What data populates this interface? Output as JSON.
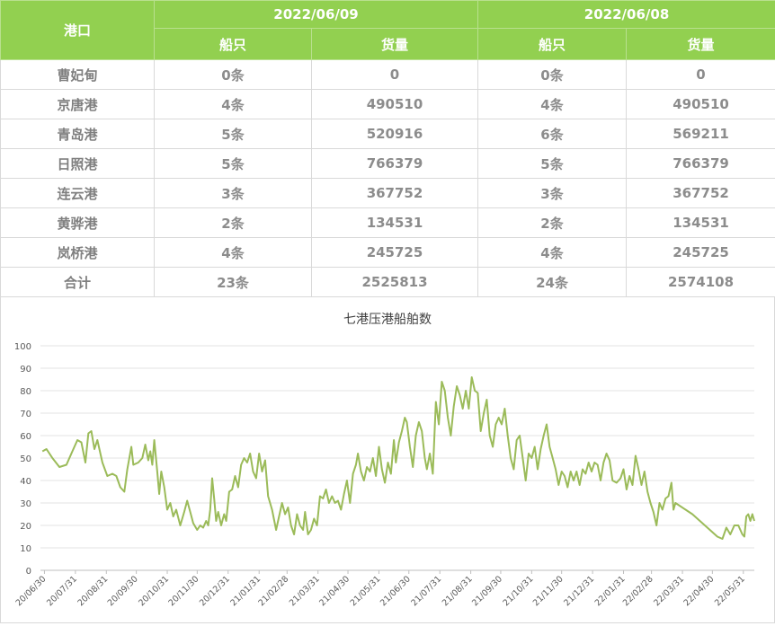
{
  "table": {
    "header_port": "港口",
    "dates": [
      "2022/06/09",
      "2022/06/08"
    ],
    "sub_ships": "船只",
    "sub_cargo": "货量",
    "rows": [
      {
        "port": "曹妃甸",
        "ships1": "0条",
        "cargo1": "0",
        "ships2": "0条",
        "cargo2": "0"
      },
      {
        "port": "京唐港",
        "ships1": "4条",
        "cargo1": "490510",
        "ships2": "4条",
        "cargo2": "490510"
      },
      {
        "port": "青岛港",
        "ships1": "5条",
        "cargo1": "520916",
        "ships2": "6条",
        "cargo2": "569211"
      },
      {
        "port": "日照港",
        "ships1": "5条",
        "cargo1": "766379",
        "ships2": "5条",
        "cargo2": "766379"
      },
      {
        "port": "连云港",
        "ships1": "3条",
        "cargo1": "367752",
        "ships2": "3条",
        "cargo2": "367752"
      },
      {
        "port": "黄骅港",
        "ships1": "2条",
        "cargo1": "134531",
        "ships2": "2条",
        "cargo2": "134531"
      },
      {
        "port": "岚桥港",
        "ships1": "4条",
        "cargo1": "245725",
        "ships2": "4条",
        "cargo2": "245725"
      },
      {
        "port": "合计",
        "ships1": "23条",
        "cargo1": "2525813",
        "ships2": "24条",
        "cargo2": "2574108"
      }
    ]
  },
  "chart_data": {
    "type": "line",
    "title": "七港压港船舶数",
    "ylim": [
      0,
      100
    ],
    "yticks": [
      0,
      10,
      20,
      30,
      40,
      50,
      60,
      70,
      80,
      90,
      100
    ],
    "grid": true,
    "x_tick_labels": [
      "20/06/30",
      "20/07/31",
      "20/08/31",
      "20/09/30",
      "20/10/31",
      "20/11/30",
      "20/12/31",
      "21/01/31",
      "21/02/28",
      "21/03/31",
      "21/04/30",
      "21/05/31",
      "21/06/30",
      "21/07/31",
      "21/08/31",
      "21/09/30",
      "21/10/31",
      "21/11/30",
      "21/12/31",
      "22/01/31",
      "22/02/28",
      "22/03/31",
      "22/04/30",
      "22/05/31"
    ],
    "line_color": "#9bbb59",
    "series": [
      {
        "points": [
          [
            "2020-06-28",
            53
          ],
          [
            "2020-07-02",
            54
          ],
          [
            "2020-07-08",
            50
          ],
          [
            "2020-07-15",
            46
          ],
          [
            "2020-07-22",
            47
          ],
          [
            "2020-07-28",
            53
          ],
          [
            "2020-08-02",
            58
          ],
          [
            "2020-08-06",
            57
          ],
          [
            "2020-08-10",
            48
          ],
          [
            "2020-08-13",
            61
          ],
          [
            "2020-08-16",
            62
          ],
          [
            "2020-08-19",
            54
          ],
          [
            "2020-08-22",
            58
          ],
          [
            "2020-08-27",
            48
          ],
          [
            "2020-09-01",
            42
          ],
          [
            "2020-09-06",
            43
          ],
          [
            "2020-09-10",
            42
          ],
          [
            "2020-09-14",
            37
          ],
          [
            "2020-09-18",
            35
          ],
          [
            "2020-09-21",
            45
          ],
          [
            "2020-09-25",
            55
          ],
          [
            "2020-09-27",
            47
          ],
          [
            "2020-10-02",
            48
          ],
          [
            "2020-10-06",
            50
          ],
          [
            "2020-10-09",
            56
          ],
          [
            "2020-10-12",
            49
          ],
          [
            "2020-10-14",
            53
          ],
          [
            "2020-10-16",
            47
          ],
          [
            "2020-10-18",
            58
          ],
          [
            "2020-10-21",
            44
          ],
          [
            "2020-10-23",
            34
          ],
          [
            "2020-10-25",
            44
          ],
          [
            "2020-10-28",
            37
          ],
          [
            "2020-10-31",
            27
          ],
          [
            "2020-11-03",
            30
          ],
          [
            "2020-11-06",
            24
          ],
          [
            "2020-11-09",
            27
          ],
          [
            "2020-11-13",
            20
          ],
          [
            "2020-11-17",
            26
          ],
          [
            "2020-11-20",
            31
          ],
          [
            "2020-11-23",
            26
          ],
          [
            "2020-11-26",
            21
          ],
          [
            "2020-11-30",
            18
          ],
          [
            "2020-12-03",
            20
          ],
          [
            "2020-12-06",
            19
          ],
          [
            "2020-12-09",
            22
          ],
          [
            "2020-12-11",
            20
          ],
          [
            "2020-12-13",
            27
          ],
          [
            "2020-12-15",
            41
          ],
          [
            "2020-12-17",
            32
          ],
          [
            "2020-12-19",
            22
          ],
          [
            "2020-12-21",
            26
          ],
          [
            "2020-12-24",
            20
          ],
          [
            "2020-12-27",
            25
          ],
          [
            "2020-12-29",
            22
          ],
          [
            "2021-01-01",
            35
          ],
          [
            "2021-01-04",
            36
          ],
          [
            "2021-01-07",
            42
          ],
          [
            "2021-01-10",
            37
          ],
          [
            "2021-01-13",
            47
          ],
          [
            "2021-01-16",
            50
          ],
          [
            "2021-01-19",
            48
          ],
          [
            "2021-01-22",
            52
          ],
          [
            "2021-01-25",
            44
          ],
          [
            "2021-01-28",
            41
          ],
          [
            "2021-01-31",
            52
          ],
          [
            "2021-02-03",
            44
          ],
          [
            "2021-02-06",
            49
          ],
          [
            "2021-02-09",
            33
          ],
          [
            "2021-02-13",
            27
          ],
          [
            "2021-02-17",
            18
          ],
          [
            "2021-02-20",
            24
          ],
          [
            "2021-02-23",
            30
          ],
          [
            "2021-02-26",
            25
          ],
          [
            "2021-03-01",
            28
          ],
          [
            "2021-03-04",
            20
          ],
          [
            "2021-03-07",
            16
          ],
          [
            "2021-03-10",
            25
          ],
          [
            "2021-03-13",
            20
          ],
          [
            "2021-03-16",
            18
          ],
          [
            "2021-03-18",
            26
          ],
          [
            "2021-03-21",
            16
          ],
          [
            "2021-03-24",
            18
          ],
          [
            "2021-03-27",
            23
          ],
          [
            "2021-03-30",
            20
          ],
          [
            "2021-04-02",
            33
          ],
          [
            "2021-04-05",
            32
          ],
          [
            "2021-04-08",
            36
          ],
          [
            "2021-04-11",
            30
          ],
          [
            "2021-04-14",
            33
          ],
          [
            "2021-04-17",
            30
          ],
          [
            "2021-04-20",
            31
          ],
          [
            "2021-04-23",
            27
          ],
          [
            "2021-04-26",
            34
          ],
          [
            "2021-04-29",
            40
          ],
          [
            "2021-05-02",
            30
          ],
          [
            "2021-05-05",
            43
          ],
          [
            "2021-05-08",
            47
          ],
          [
            "2021-05-10",
            52
          ],
          [
            "2021-05-13",
            44
          ],
          [
            "2021-05-16",
            40
          ],
          [
            "2021-05-19",
            46
          ],
          [
            "2021-05-22",
            44
          ],
          [
            "2021-05-25",
            50
          ],
          [
            "2021-05-28",
            42
          ],
          [
            "2021-05-31",
            55
          ],
          [
            "2021-06-03",
            45
          ],
          [
            "2021-06-06",
            39
          ],
          [
            "2021-06-09",
            48
          ],
          [
            "2021-06-12",
            43
          ],
          [
            "2021-06-15",
            58
          ],
          [
            "2021-06-17",
            48
          ],
          [
            "2021-06-20",
            57
          ],
          [
            "2021-06-23",
            62
          ],
          [
            "2021-06-26",
            68
          ],
          [
            "2021-06-28",
            66
          ],
          [
            "2021-07-01",
            55
          ],
          [
            "2021-07-04",
            46
          ],
          [
            "2021-07-07",
            60
          ],
          [
            "2021-07-10",
            66
          ],
          [
            "2021-07-13",
            62
          ],
          [
            "2021-07-16",
            50
          ],
          [
            "2021-07-18",
            45
          ],
          [
            "2021-07-21",
            52
          ],
          [
            "2021-07-24",
            43
          ],
          [
            "2021-07-27",
            75
          ],
          [
            "2021-07-30",
            65
          ],
          [
            "2021-08-02",
            84
          ],
          [
            "2021-08-05",
            80
          ],
          [
            "2021-08-08",
            68
          ],
          [
            "2021-08-11",
            60
          ],
          [
            "2021-08-14",
            73
          ],
          [
            "2021-08-17",
            82
          ],
          [
            "2021-08-20",
            78
          ],
          [
            "2021-08-23",
            72
          ],
          [
            "2021-08-26",
            80
          ],
          [
            "2021-08-29",
            72
          ],
          [
            "2021-09-01",
            86
          ],
          [
            "2021-09-04",
            80
          ],
          [
            "2021-09-07",
            79
          ],
          [
            "2021-09-10",
            62
          ],
          [
            "2021-09-13",
            70
          ],
          [
            "2021-09-16",
            76
          ],
          [
            "2021-09-19",
            60
          ],
          [
            "2021-09-22",
            55
          ],
          [
            "2021-09-25",
            65
          ],
          [
            "2021-09-28",
            68
          ],
          [
            "2021-10-01",
            65
          ],
          [
            "2021-10-04",
            72
          ],
          [
            "2021-10-07",
            60
          ],
          [
            "2021-10-10",
            50
          ],
          [
            "2021-10-13",
            45
          ],
          [
            "2021-10-16",
            58
          ],
          [
            "2021-10-19",
            60
          ],
          [
            "2021-10-22",
            50
          ],
          [
            "2021-10-25",
            40
          ],
          [
            "2021-10-28",
            52
          ],
          [
            "2021-10-31",
            50
          ],
          [
            "2021-11-03",
            55
          ],
          [
            "2021-11-06",
            45
          ],
          [
            "2021-11-09",
            54
          ],
          [
            "2021-11-12",
            60
          ],
          [
            "2021-11-15",
            65
          ],
          [
            "2021-11-18",
            55
          ],
          [
            "2021-11-21",
            50
          ],
          [
            "2021-11-24",
            45
          ],
          [
            "2021-11-27",
            38
          ],
          [
            "2021-11-30",
            44
          ],
          [
            "2021-12-03",
            42
          ],
          [
            "2021-12-06",
            37
          ],
          [
            "2021-12-09",
            44
          ],
          [
            "2021-12-12",
            40
          ],
          [
            "2021-12-15",
            44
          ],
          [
            "2021-12-18",
            38
          ],
          [
            "2021-12-21",
            45
          ],
          [
            "2021-12-24",
            43
          ],
          [
            "2021-12-27",
            48
          ],
          [
            "2021-12-30",
            44
          ],
          [
            "2022-01-02",
            48
          ],
          [
            "2022-01-05",
            47
          ],
          [
            "2022-01-08",
            40
          ],
          [
            "2022-01-11",
            48
          ],
          [
            "2022-01-14",
            52
          ],
          [
            "2022-01-17",
            49
          ],
          [
            "2022-01-20",
            40
          ],
          [
            "2022-01-24",
            39
          ],
          [
            "2022-01-28",
            41
          ],
          [
            "2022-01-31",
            45
          ],
          [
            "2022-02-03",
            36
          ],
          [
            "2022-02-06",
            42
          ],
          [
            "2022-02-09",
            38
          ],
          [
            "2022-02-12",
            51
          ],
          [
            "2022-02-15",
            45
          ],
          [
            "2022-02-18",
            38
          ],
          [
            "2022-02-21",
            44
          ],
          [
            "2022-02-24",
            35
          ],
          [
            "2022-02-27",
            30
          ],
          [
            "2022-03-02",
            26
          ],
          [
            "2022-03-05",
            20
          ],
          [
            "2022-03-08",
            30
          ],
          [
            "2022-03-11",
            27
          ],
          [
            "2022-03-14",
            32
          ],
          [
            "2022-03-17",
            33
          ],
          [
            "2022-03-20",
            39
          ],
          [
            "2022-03-22",
            27
          ],
          [
            "2022-03-24",
            30
          ],
          [
            "2022-04-10",
            25
          ],
          [
            "2022-04-25",
            19
          ],
          [
            "2022-05-05",
            15
          ],
          [
            "2022-05-10",
            14
          ],
          [
            "2022-05-14",
            19
          ],
          [
            "2022-05-18",
            16
          ],
          [
            "2022-05-22",
            20
          ],
          [
            "2022-05-26",
            20
          ],
          [
            "2022-05-30",
            16
          ],
          [
            "2022-06-01",
            15
          ],
          [
            "2022-06-03",
            24
          ],
          [
            "2022-06-05",
            25
          ],
          [
            "2022-06-07",
            22
          ],
          [
            "2022-06-09",
            25
          ],
          [
            "2022-06-11",
            22
          ]
        ]
      }
    ]
  }
}
